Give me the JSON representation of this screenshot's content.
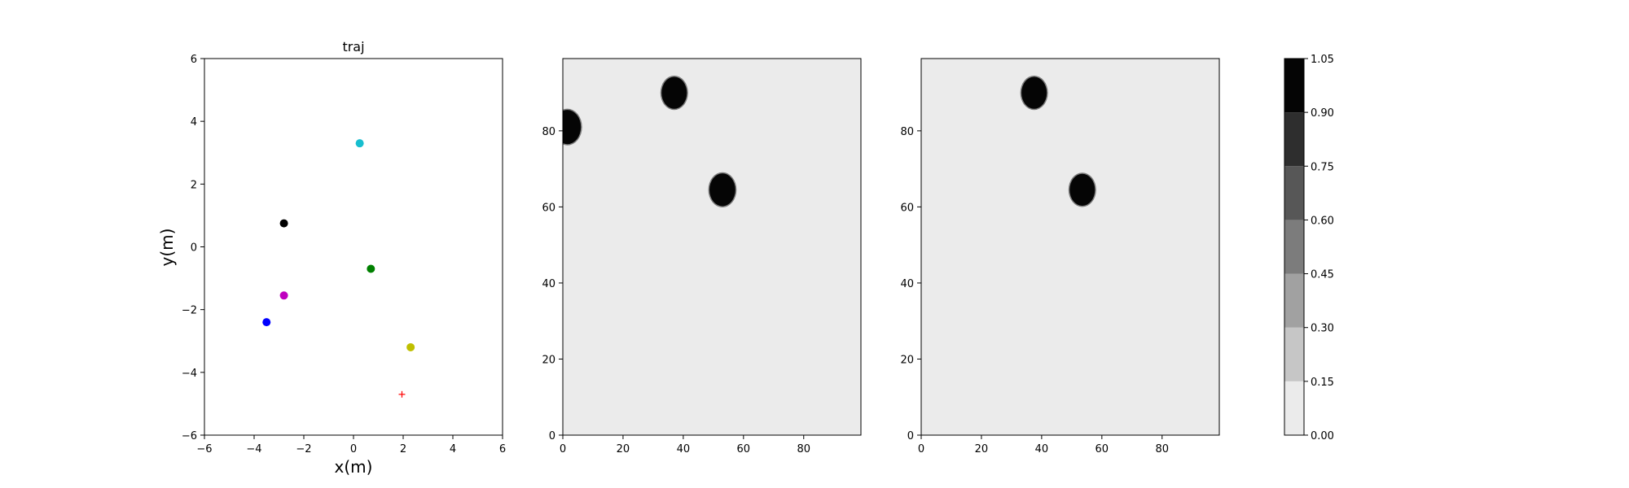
{
  "chart_data": [
    {
      "type": "scatter",
      "title": "traj",
      "xlabel": "x(m)",
      "ylabel": "y(m)",
      "xlim": [
        -6,
        6
      ],
      "ylim": [
        -6,
        6
      ],
      "xticks": [
        "−6",
        "−4",
        "−2",
        "0",
        "2",
        "4",
        "6"
      ],
      "yticks": [
        "−6",
        "−4",
        "−2",
        "0",
        "2",
        "4",
        "6"
      ],
      "points": [
        {
          "x": 0.25,
          "y": 3.3,
          "color": "#17becf",
          "marker": "circle"
        },
        {
          "x": -2.8,
          "y": 0.75,
          "color": "#000000",
          "marker": "circle"
        },
        {
          "x": 0.7,
          "y": -0.7,
          "color": "#008000",
          "marker": "circle"
        },
        {
          "x": -2.8,
          "y": -1.55,
          "color": "#bf00bf",
          "marker": "circle"
        },
        {
          "x": -3.5,
          "y": -2.4,
          "color": "#0000ff",
          "marker": "circle"
        },
        {
          "x": 2.3,
          "y": -3.2,
          "color": "#bfbf00",
          "marker": "circle"
        },
        {
          "x": 1.95,
          "y": -4.7,
          "color": "#ff0000",
          "marker": "plus"
        }
      ]
    },
    {
      "type": "heatmap",
      "title": "",
      "xlim": [
        0,
        99
      ],
      "ylim": [
        0,
        99
      ],
      "xticks": [
        "0",
        "20",
        "40",
        "60",
        "80"
      ],
      "yticks": [
        "0",
        "20",
        "40",
        "60",
        "80"
      ],
      "background_value": 0.05,
      "blobs": [
        {
          "cx": 1.5,
          "cy": 81,
          "r": 4.5,
          "value": 1.0
        },
        {
          "cx": 37,
          "cy": 90,
          "r": 4.2,
          "value": 1.0
        },
        {
          "cx": 53,
          "cy": 64.5,
          "r": 4.3,
          "value": 1.0
        }
      ]
    },
    {
      "type": "heatmap",
      "title": "",
      "xlim": [
        0,
        99
      ],
      "ylim": [
        0,
        99
      ],
      "xticks": [
        "0",
        "20",
        "40",
        "60",
        "80"
      ],
      "yticks": [
        "0",
        "20",
        "40",
        "60",
        "80"
      ],
      "background_value": 0.05,
      "blobs": [
        {
          "cx": 37.5,
          "cy": 90,
          "r": 4.2,
          "value": 1.0
        },
        {
          "cx": 53.5,
          "cy": 64.5,
          "r": 4.2,
          "value": 1.0
        }
      ]
    }
  ],
  "colorbar": {
    "ticks": [
      "0.00",
      "0.15",
      "0.30",
      "0.45",
      "0.60",
      "0.75",
      "0.90",
      "1.05"
    ],
    "levels": [
      0.0,
      0.15,
      0.3,
      0.45,
      0.6,
      0.75,
      0.9,
      1.05
    ],
    "colors": [
      "#ebebeb",
      "#c6c6c6",
      "#a1a1a1",
      "#7c7c7c",
      "#575757",
      "#2e2e2e",
      "#050505"
    ]
  }
}
